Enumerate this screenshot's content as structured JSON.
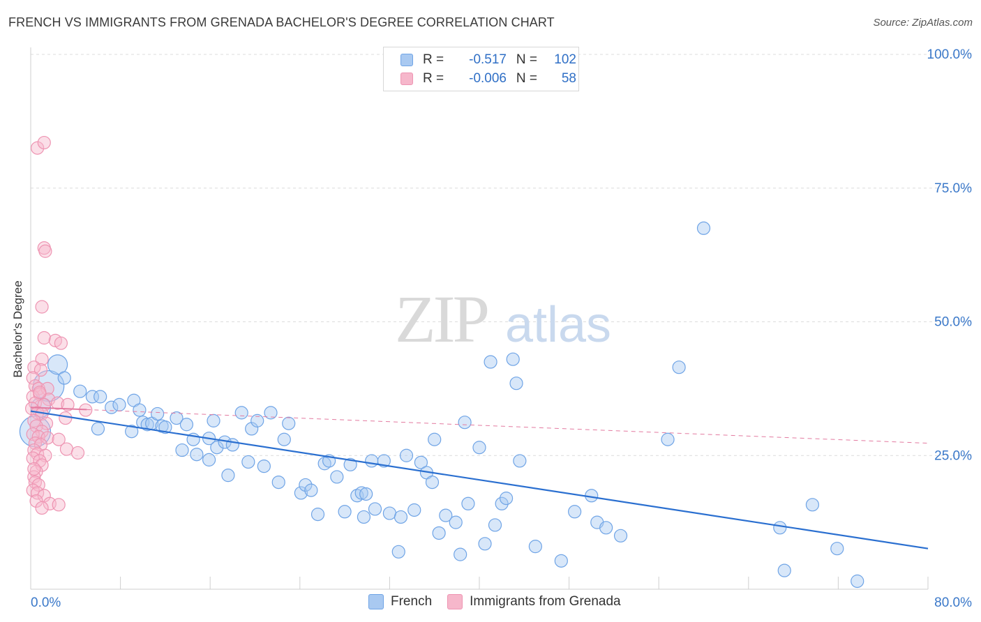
{
  "title": "FRENCH VS IMMIGRANTS FROM GRENADA BACHELOR'S DEGREE CORRELATION CHART",
  "source": "Source: ZipAtlas.com",
  "watermark": {
    "zip": "ZIP",
    "atlas": "atlas"
  },
  "legend": {
    "rows": [
      {
        "r_label": "R =",
        "r_value": "-0.517",
        "n_label": "N =",
        "n_value": "102",
        "color": "#a9c9f1"
      },
      {
        "r_label": "R =",
        "r_value": "-0.006",
        "n_label": "N =",
        "n_value": "58",
        "color": "#f6b7cb"
      }
    ]
  },
  "bottom_legend": [
    {
      "label": "French",
      "color": "#a9c9f1"
    },
    {
      "label": "Immigrants from Grenada",
      "color": "#f6b7cb"
    }
  ],
  "chart_data": {
    "type": "scatter",
    "title": "FRENCH VS IMMIGRANTS FROM GRENADA BACHELOR'S DEGREE CORRELATION CHART",
    "xlabel": "",
    "ylabel": "Bachelor's Degree",
    "xlim": [
      0,
      80
    ],
    "ylim": [
      0,
      100
    ],
    "x_tick_labels": [
      "0.0%",
      "80.0%"
    ],
    "y_tick_labels": [
      "100.0%",
      "75.0%",
      "50.0%",
      "25.0%"
    ],
    "y_ticks": [
      100,
      75,
      50,
      25
    ],
    "grid": true,
    "legend_position": "top-center",
    "series": [
      {
        "name": "French",
        "color": "#6fa4e6",
        "fill": "#a9c9f1",
        "trend": {
          "x": [
            0,
            80
          ],
          "y": [
            33.3,
            7.6
          ],
          "color": "#2a6fd0",
          "style": "solid"
        },
        "points": [
          [
            0.4,
            29.5,
            3
          ],
          [
            1.6,
            38.0,
            3
          ],
          [
            2.4,
            42.0,
            2
          ],
          [
            0.9,
            34.0,
            2
          ],
          [
            3.0,
            39.5,
            1
          ],
          [
            4.4,
            37.0,
            1
          ],
          [
            5.5,
            36.0,
            1
          ],
          [
            6.2,
            36.0,
            1
          ],
          [
            6.0,
            30.0,
            1
          ],
          [
            7.2,
            34.0,
            1
          ],
          [
            7.9,
            34.5,
            1
          ],
          [
            9.0,
            29.5,
            1
          ],
          [
            9.2,
            35.3,
            1
          ],
          [
            9.7,
            33.5,
            1
          ],
          [
            10.0,
            31.2,
            1
          ],
          [
            10.4,
            30.8,
            1
          ],
          [
            10.8,
            31.0,
            1
          ],
          [
            11.3,
            32.8,
            1
          ],
          [
            11.7,
            30.5,
            1
          ],
          [
            12.0,
            30.3,
            1
          ],
          [
            13.0,
            32.0,
            1
          ],
          [
            13.5,
            26.0,
            1
          ],
          [
            13.9,
            30.8,
            1
          ],
          [
            14.5,
            28.0,
            1
          ],
          [
            14.8,
            25.2,
            1
          ],
          [
            15.9,
            28.2,
            1
          ],
          [
            15.9,
            24.2,
            1
          ],
          [
            16.3,
            31.5,
            1
          ],
          [
            16.6,
            26.5,
            1
          ],
          [
            17.3,
            27.5,
            1
          ],
          [
            17.6,
            21.3,
            1
          ],
          [
            18.0,
            27.0,
            1
          ],
          [
            18.8,
            33.0,
            1
          ],
          [
            19.4,
            23.8,
            1
          ],
          [
            19.7,
            30.0,
            1
          ],
          [
            20.2,
            31.5,
            1
          ],
          [
            20.8,
            23.0,
            1
          ],
          [
            21.4,
            33.0,
            1
          ],
          [
            22.1,
            20.0,
            1
          ],
          [
            22.6,
            28.0,
            1
          ],
          [
            23.0,
            31.0,
            1
          ],
          [
            24.1,
            18.0,
            1
          ],
          [
            24.5,
            19.5,
            1
          ],
          [
            25.0,
            18.5,
            1
          ],
          [
            25.6,
            14.0,
            1
          ],
          [
            26.2,
            23.5,
            1
          ],
          [
            26.6,
            24.0,
            1
          ],
          [
            27.3,
            21.0,
            1
          ],
          [
            28.0,
            14.5,
            1
          ],
          [
            28.5,
            23.3,
            1
          ],
          [
            29.1,
            17.5,
            1
          ],
          [
            29.5,
            18.0,
            1
          ],
          [
            29.7,
            13.5,
            1
          ],
          [
            29.9,
            17.8,
            1
          ],
          [
            30.4,
            24.0,
            1
          ],
          [
            30.7,
            15.0,
            1
          ],
          [
            31.5,
            24.0,
            1
          ],
          [
            32.0,
            14.2,
            1
          ],
          [
            32.8,
            7.0,
            1
          ],
          [
            33.0,
            13.5,
            1
          ],
          [
            33.5,
            25.0,
            1
          ],
          [
            34.2,
            14.8,
            1
          ],
          [
            34.8,
            23.7,
            1
          ],
          [
            35.3,
            21.8,
            1
          ],
          [
            35.8,
            20.0,
            1
          ],
          [
            36.0,
            28.0,
            1
          ],
          [
            36.4,
            10.5,
            1
          ],
          [
            37.0,
            13.8,
            1
          ],
          [
            37.9,
            12.5,
            1
          ],
          [
            38.3,
            6.5,
            1
          ],
          [
            38.7,
            31.2,
            1
          ],
          [
            39.0,
            16.0,
            1
          ],
          [
            40.0,
            26.5,
            1
          ],
          [
            40.5,
            8.5,
            1
          ],
          [
            41.0,
            42.5,
            1
          ],
          [
            41.4,
            12.0,
            1
          ],
          [
            42.0,
            16.0,
            1
          ],
          [
            42.4,
            17.0,
            1
          ],
          [
            43.0,
            43.0,
            1
          ],
          [
            43.3,
            38.5,
            1
          ],
          [
            43.6,
            24.0,
            1
          ],
          [
            45.0,
            8.0,
            1
          ],
          [
            47.3,
            5.3,
            1
          ],
          [
            48.5,
            14.5,
            1
          ],
          [
            50.0,
            17.5,
            1
          ],
          [
            50.5,
            12.5,
            1
          ],
          [
            51.3,
            11.5,
            1
          ],
          [
            52.6,
            10.0,
            1
          ],
          [
            56.8,
            28.0,
            1
          ],
          [
            57.8,
            41.5,
            1
          ],
          [
            60.0,
            67.5,
            1
          ],
          [
            67.2,
            3.5,
            1
          ],
          [
            66.8,
            11.5,
            1
          ],
          [
            69.7,
            15.8,
            1
          ],
          [
            71.9,
            7.6,
            1
          ],
          [
            73.7,
            1.5,
            1
          ]
        ]
      },
      {
        "name": "Immigrants from Grenada",
        "color": "#ee94b2",
        "fill": "#f6b7cb",
        "trend": {
          "x": [
            0,
            80
          ],
          "y": [
            34.0,
            27.3
          ],
          "color": "#e37aa0",
          "style": "dashed",
          "solid_until_x": 5.0
        },
        "points": [
          [
            0.6,
            82.5,
            1
          ],
          [
            1.2,
            83.5,
            1
          ],
          [
            1.2,
            63.8,
            1
          ],
          [
            1.3,
            63.2,
            1
          ],
          [
            1.0,
            52.8,
            1
          ],
          [
            1.2,
            47.0,
            1
          ],
          [
            2.2,
            46.5,
            1
          ],
          [
            2.7,
            46.0,
            1
          ],
          [
            1.0,
            43.0,
            1
          ],
          [
            0.3,
            41.5,
            1
          ],
          [
            0.9,
            41.0,
            1
          ],
          [
            0.2,
            39.5,
            1
          ],
          [
            0.4,
            38.0,
            1
          ],
          [
            0.7,
            37.5,
            1
          ],
          [
            1.5,
            37.5,
            1
          ],
          [
            0.2,
            36.0,
            1
          ],
          [
            0.8,
            36.5,
            1
          ],
          [
            1.6,
            35.5,
            1
          ],
          [
            0.4,
            34.8,
            1
          ],
          [
            1.2,
            34.5,
            1
          ],
          [
            2.4,
            34.8,
            1
          ],
          [
            3.3,
            34.5,
            1
          ],
          [
            4.9,
            33.5,
            1
          ],
          [
            0.1,
            33.8,
            1
          ],
          [
            0.6,
            33.0,
            1
          ],
          [
            1.0,
            32.8,
            1
          ],
          [
            0.3,
            31.5,
            1
          ],
          [
            1.4,
            31.0,
            1
          ],
          [
            3.1,
            32.0,
            1
          ],
          [
            0.5,
            30.5,
            1
          ],
          [
            1.0,
            29.5,
            1
          ],
          [
            0.2,
            29.0,
            1
          ],
          [
            0.7,
            28.5,
            1
          ],
          [
            1.5,
            28.3,
            1
          ],
          [
            2.5,
            28.0,
            1
          ],
          [
            0.4,
            27.3,
            1
          ],
          [
            0.9,
            27.0,
            1
          ],
          [
            0.3,
            26.0,
            1
          ],
          [
            3.2,
            26.2,
            1
          ],
          [
            4.2,
            25.5,
            1
          ],
          [
            0.6,
            25.3,
            1
          ],
          [
            1.3,
            25.0,
            1
          ],
          [
            0.2,
            24.5,
            1
          ],
          [
            0.8,
            24.0,
            1
          ],
          [
            1.0,
            23.2,
            1
          ],
          [
            0.5,
            22.0,
            1
          ],
          [
            0.3,
            21.0,
            1
          ],
          [
            0.4,
            20.0,
            1
          ],
          [
            0.7,
            19.5,
            1
          ],
          [
            0.2,
            18.5,
            1
          ],
          [
            0.6,
            18.0,
            1
          ],
          [
            1.2,
            17.5,
            1
          ],
          [
            0.5,
            16.5,
            1
          ],
          [
            1.7,
            16.0,
            1
          ],
          [
            2.5,
            15.8,
            1
          ],
          [
            1.0,
            15.2,
            1
          ],
          [
            0.3,
            22.5,
            1
          ],
          [
            0.8,
            36.8,
            1
          ]
        ]
      }
    ]
  }
}
